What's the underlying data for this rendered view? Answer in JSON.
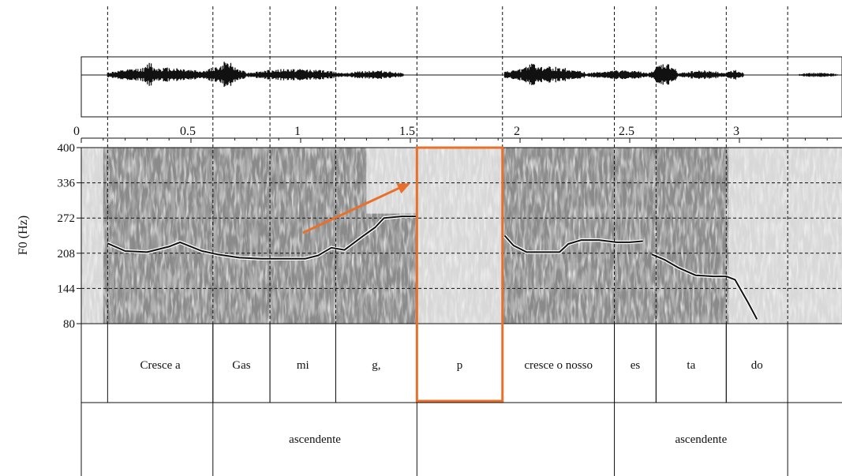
{
  "chart_data": {
    "type": "line",
    "title": "",
    "xlabel": "",
    "ylabel": "F0 (Hz)",
    "xlim": [
      0,
      3.5
    ],
    "ylim": [
      80,
      400
    ],
    "x_ticks": [
      0,
      0.5,
      1,
      1.5,
      2,
      2.5,
      3
    ],
    "x_tick_labels": [
      "0",
      "0.5",
      "1",
      "1.5",
      "2",
      "2.5",
      "3"
    ],
    "y_ticks": [
      400,
      336,
      272,
      208,
      144,
      80
    ],
    "y_tick_labels": [
      "400",
      "336",
      "272",
      "208",
      "144",
      "80"
    ],
    "grid": "dashed horizontal at y ticks; dashed vertical at segment boundaries",
    "panels": [
      "waveform",
      "spectrogram with F0 contour",
      "syllable tier",
      "contour tier"
    ],
    "boundaries": [
      0.12,
      0.6,
      0.86,
      1.16,
      1.53,
      1.92,
      2.43,
      2.62,
      2.94,
      3.22
    ],
    "f0_series": [
      {
        "name": "",
        "x": [
          0.12,
          0.2,
          0.3,
          0.4,
          0.45,
          0.55,
          0.62,
          0.72,
          0.82,
          0.92,
          1.02,
          1.08,
          1.14,
          1.2,
          1.28,
          1.34,
          1.38,
          1.46,
          1.53
        ],
        "y": [
          226,
          212,
          210,
          220,
          228,
          212,
          206,
          200,
          198,
          198,
          198,
          204,
          218,
          214,
          238,
          255,
          272,
          275,
          275
        ]
      },
      {
        "name": "",
        "x": [
          1.93,
          1.97,
          2.03,
          2.1,
          2.18,
          2.22,
          2.28,
          2.36,
          2.44,
          2.5,
          2.56
        ],
        "y": [
          240,
          222,
          210,
          210,
          210,
          225,
          232,
          232,
          228,
          228,
          230
        ]
      },
      {
        "name": "",
        "x": [
          2.6,
          2.66,
          2.72,
          2.8,
          2.88,
          2.94,
          2.98,
          3.04,
          3.08
        ],
        "y": [
          206,
          196,
          182,
          168,
          166,
          166,
          160,
          118,
          88
        ]
      }
    ],
    "syllables": [
      {
        "label": "Cresce a",
        "start": 0.12,
        "end": 0.6
      },
      {
        "label": "Gas",
        "start": 0.6,
        "end": 0.86
      },
      {
        "label": "mi",
        "start": 0.86,
        "end": 1.16
      },
      {
        "label": "g,",
        "start": 1.16,
        "end": 1.53
      },
      {
        "label": "p",
        "start": 1.53,
        "end": 1.92
      },
      {
        "label": "cresce o nosso",
        "start": 1.92,
        "end": 2.43
      },
      {
        "label": "es",
        "start": 2.43,
        "end": 2.62
      },
      {
        "label": "ta",
        "start": 2.62,
        "end": 2.94
      },
      {
        "label": "do",
        "start": 2.94,
        "end": 3.22
      }
    ],
    "contours": [
      {
        "label": "",
        "start": 0,
        "end": 0.6
      },
      {
        "label": "ascendente",
        "start": 0.6,
        "end": 1.53
      },
      {
        "label": "",
        "start": 1.53,
        "end": 2.43
      },
      {
        "label": "ascendente",
        "start": 2.43,
        "end": 3.22
      }
    ],
    "annotations": {
      "highlight_box": {
        "start": 1.53,
        "end": 1.92,
        "color": "#e8702a"
      },
      "arrow": {
        "from": [
          1.01,
          245
        ],
        "to": [
          1.5,
          335
        ],
        "color": "#e8702a"
      }
    }
  },
  "colors": {
    "line": "#111111",
    "spectrogram_bg": "#8a8a8a",
    "highlight": "#e8702a"
  }
}
